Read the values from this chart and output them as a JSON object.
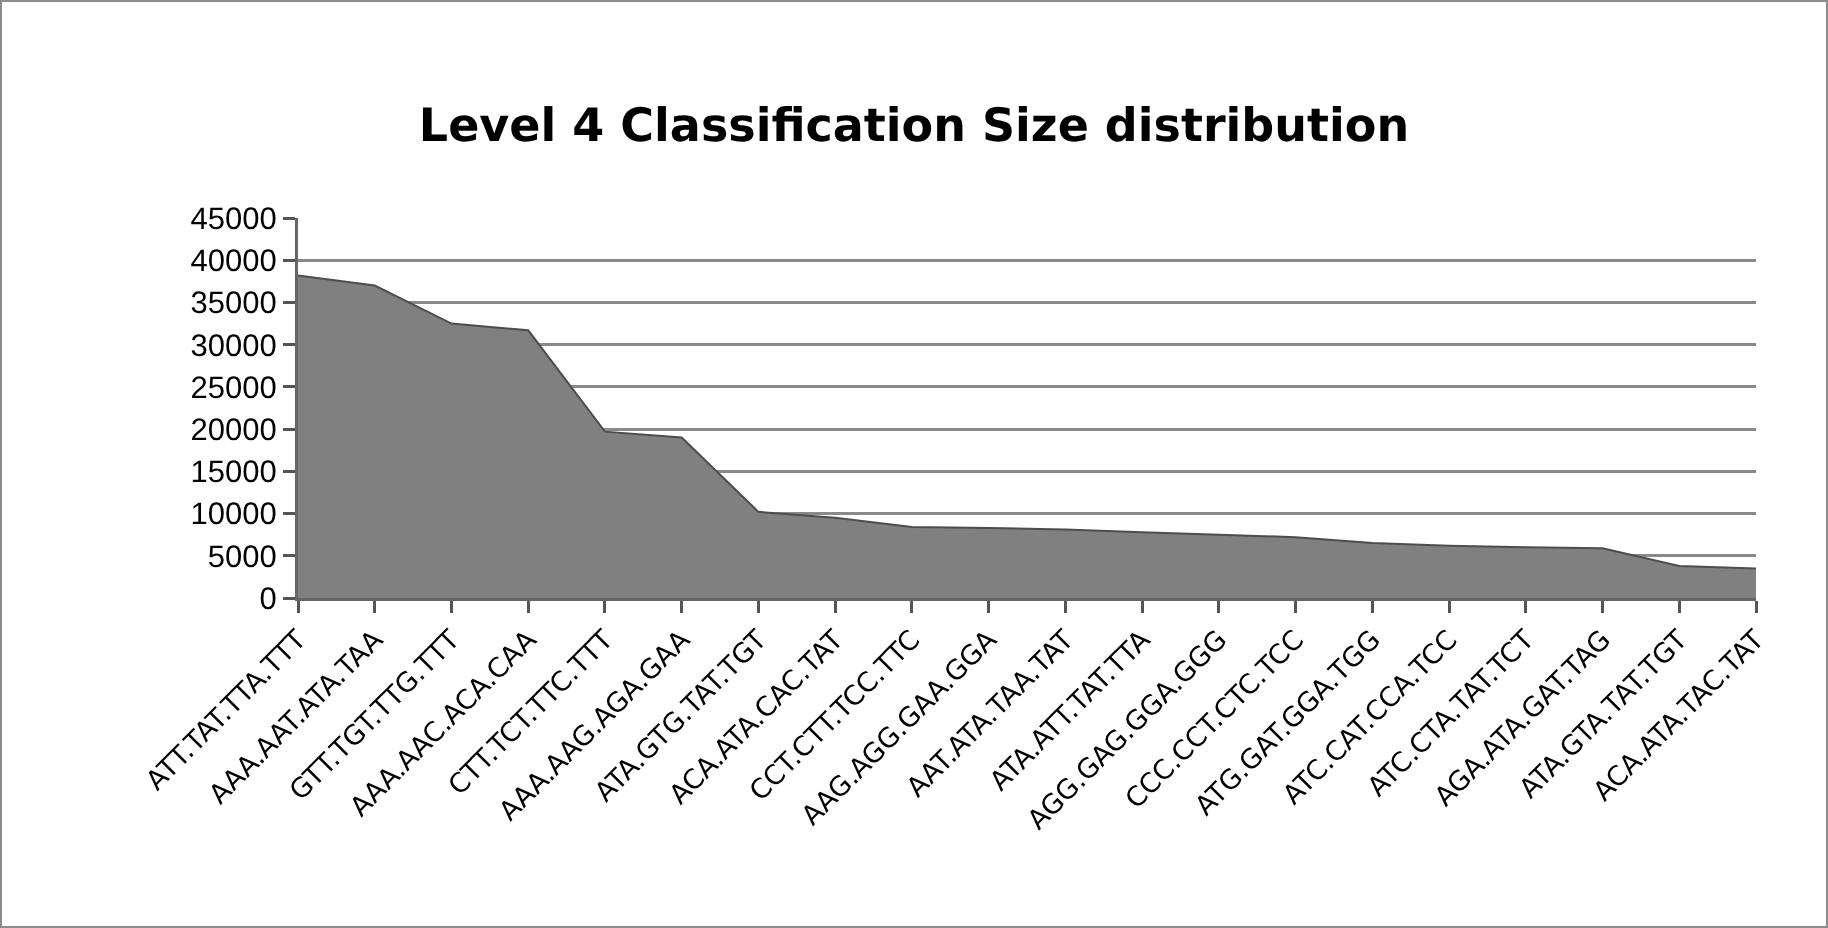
{
  "chart_data": {
    "type": "area",
    "title": "Level 4 Classification Size distribution",
    "categories": [
      "ATT.TAT.TTA.TTT",
      "AAA.AAT.ATA.TAA",
      "GTT.TGT.TTG.TTT",
      "AAA.AAC.ACA.CAA",
      "CTT.TCT.TTC.TTT",
      "AAA.AAG.AGA.GAA",
      "ATA.GTG.TAT.TGT",
      "ACA.ATA.CAC.TAT",
      "CCT.CTT.TCC.TTC",
      "AAG.AGG.GAA.GGA",
      "AAT.ATA.TAA.TAT",
      "ATA.ATT.TAT.TTA",
      "AGG.GAG.GGA.GGG",
      "CCC.CCT.CTC.TCC",
      "ATG.GAT.GGA.TGG",
      "ATC.CAT.CCA.TCC",
      "ATC.CTA.TAT.TCT",
      "AGA.ATA.GAT.TAG",
      "ATA.GTA.TAT.TGT",
      "ACA.ATA.TAC.TAT"
    ],
    "values": [
      38200,
      37000,
      32500,
      31700,
      19700,
      19000,
      10200,
      9500,
      8400,
      8300,
      8100,
      7800,
      7500,
      7200,
      6500,
      6200,
      6000,
      5900,
      3800,
      3500
    ],
    "color": "#808080",
    "ylim": [
      0,
      45000
    ],
    "yticks": [
      0,
      5000,
      10000,
      15000,
      20000,
      25000,
      30000,
      35000,
      40000,
      45000
    ],
    "grid": "y"
  }
}
